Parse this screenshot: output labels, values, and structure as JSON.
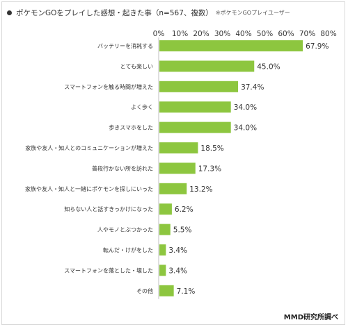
{
  "header": {
    "title": "ポケモンGOをプレイした感想・起きた事（n=567、複数）",
    "subtitle": "※ポケモンGOプレイユーザー"
  },
  "footer": {
    "source": "MMD研究所調べ"
  },
  "colors": {
    "bar": "#8dc63f",
    "text": "#333333"
  },
  "chart_data": {
    "type": "bar",
    "orientation": "horizontal",
    "categories": [
      "バッテリーを消耗する",
      "とても楽しい",
      "スマートフォンを触る時間が増えた",
      "よく歩く",
      "歩きスマホをした",
      "家族や友人・知人とのコミュニケーションが増えた",
      "普段行かない所を訪れた",
      "家族や友人・知人と一緒にポケモンを探しにいった",
      "知らない人と話すきっかけになった",
      "人やモノとぶつかった",
      "転んだ・けがをした",
      "スマートフォンを落とした・壊した",
      "その他"
    ],
    "values": [
      67.9,
      45.0,
      37.4,
      34.0,
      34.0,
      18.5,
      17.3,
      13.2,
      6.2,
      5.5,
      3.4,
      3.4,
      7.1
    ],
    "value_labels": [
      "67.9%",
      "45.0%",
      "37.4%",
      "34.0%",
      "34.0%",
      "18.5%",
      "17.3%",
      "13.2%",
      "6.2%",
      "5.5%",
      "3.4%",
      "3.4%",
      "7.1%"
    ],
    "ticks": [
      0,
      10,
      20,
      30,
      40,
      50,
      60,
      70,
      80
    ],
    "tick_labels": [
      "0%",
      "10%",
      "20%",
      "30%",
      "40%",
      "50%",
      "60%",
      "70%",
      "80%"
    ],
    "xlim": [
      0,
      80
    ],
    "grid": false,
    "legend": "none"
  }
}
